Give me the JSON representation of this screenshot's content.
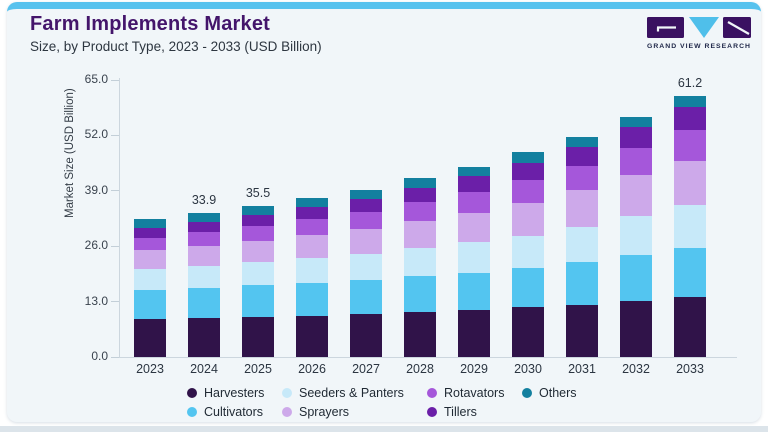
{
  "page": {
    "accent_color": "#57c2ee",
    "card_bg": "#f1f6f9"
  },
  "header": {
    "title": "Farm Implements Market",
    "subtitle": "Size, by Product Type, 2023 - 2033 (USD Billion)",
    "logo": {
      "name": "Grand View Research",
      "text": "GRAND VIEW RESEARCH",
      "block_color": "#3a1161",
      "triangle_color": "#4fbfea"
    }
  },
  "chart_data": {
    "type": "bar",
    "stacked": true,
    "title": "Farm Implements Market Size, by Product Type, 2023 - 2033 (USD Billion)",
    "xlabel": "",
    "ylabel": "Market Size (USD Billion)",
    "ylim": [
      0,
      65
    ],
    "yticks": [
      "0.0",
      "13.0",
      "26.0",
      "39.0",
      "52.0",
      "65.0"
    ],
    "grid": false,
    "legend_position": "bottom",
    "categories": [
      "2023",
      "2024",
      "2025",
      "2026",
      "2027",
      "2028",
      "2029",
      "2030",
      "2031",
      "2032",
      "2033"
    ],
    "series": [
      {
        "name": "Harvesters",
        "color": "#301349",
        "values": [
          8.8,
          9.1,
          9.4,
          9.7,
          10.0,
          10.5,
          11.0,
          11.7,
          12.3,
          13.2,
          14.1
        ]
      },
      {
        "name": "Cultivators",
        "color": "#53c5f0",
        "values": [
          6.9,
          7.1,
          7.4,
          7.7,
          8.0,
          8.4,
          8.8,
          9.3,
          9.9,
          10.7,
          11.4
        ]
      },
      {
        "name": "Seeders & Panters",
        "color": "#c7e9f9",
        "values": [
          4.9,
          5.2,
          5.4,
          5.8,
          6.2,
          6.6,
          7.1,
          7.5,
          8.4,
          9.2,
          10.1
        ]
      },
      {
        "name": "Sprayers",
        "color": "#cda9ea",
        "values": [
          4.4,
          4.7,
          5.1,
          5.5,
          5.9,
          6.4,
          7.0,
          7.7,
          8.5,
          9.5,
          10.5
        ]
      },
      {
        "name": "Rotavators",
        "color": "#a557da",
        "values": [
          3.0,
          3.2,
          3.4,
          3.7,
          4.0,
          4.4,
          4.8,
          5.4,
          5.7,
          6.4,
          7.1
        ]
      },
      {
        "name": "Tillers",
        "color": "#6b1fa8",
        "values": [
          2.3,
          2.5,
          2.7,
          2.8,
          3.1,
          3.4,
          3.7,
          4.0,
          4.4,
          4.9,
          5.4
        ]
      },
      {
        "name": "Others",
        "color": "#13809f",
        "values": [
          2.1,
          2.1,
          2.1,
          2.1,
          2.1,
          2.2,
          2.3,
          2.4,
          2.5,
          2.5,
          2.6
        ]
      }
    ],
    "bar_totals": [
      32.4,
      33.9,
      35.5,
      37.3,
      39.3,
      41.9,
      44.7,
      48.0,
      51.7,
      56.4,
      61.2
    ],
    "bar_value_labels": {
      "2024": "33.9",
      "2025": "35.5",
      "2033": "61.2"
    },
    "legend_order": [
      0,
      2,
      4,
      6,
      1,
      3,
      5
    ]
  }
}
